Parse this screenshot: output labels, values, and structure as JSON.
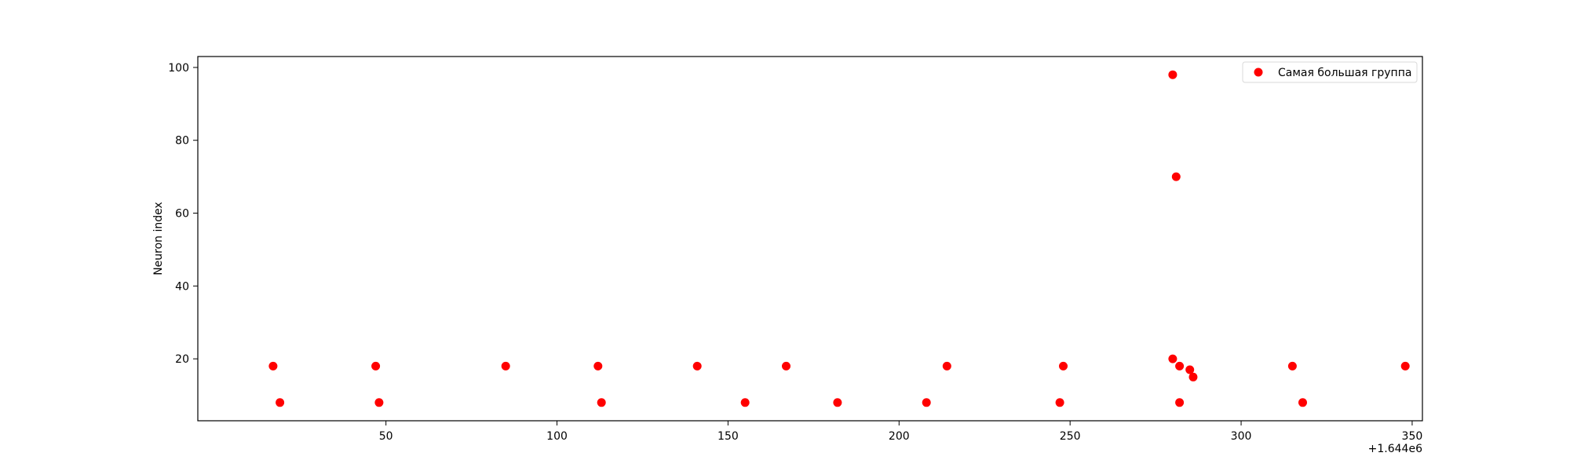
{
  "chart_data": {
    "type": "scatter",
    "title": "",
    "xlabel": "",
    "ylabel": "Neuron index",
    "x_offset_label": "+1.644e6",
    "x_offset": 1644000,
    "xlim": [
      1643995,
      1644353
    ],
    "ylim": [
      3,
      103
    ],
    "xticks": [
      50,
      100,
      150,
      200,
      250,
      300,
      350
    ],
    "yticks": [
      20,
      40,
      60,
      80,
      100
    ],
    "grid": false,
    "legend_position": "top-right",
    "series": [
      {
        "name": "Самая большая группа",
        "color": "#ff0000",
        "points": [
          {
            "x": 1644017,
            "y": 18
          },
          {
            "x": 1644019,
            "y": 8
          },
          {
            "x": 1644047,
            "y": 18
          },
          {
            "x": 1644048,
            "y": 8
          },
          {
            "x": 1644085,
            "y": 18
          },
          {
            "x": 1644112,
            "y": 18
          },
          {
            "x": 1644113,
            "y": 8
          },
          {
            "x": 1644141,
            "y": 18
          },
          {
            "x": 1644155,
            "y": 8
          },
          {
            "x": 1644167,
            "y": 18
          },
          {
            "x": 1644182,
            "y": 8
          },
          {
            "x": 1644208,
            "y": 8
          },
          {
            "x": 1644214,
            "y": 18
          },
          {
            "x": 1644247,
            "y": 8
          },
          {
            "x": 1644248,
            "y": 18
          },
          {
            "x": 1644280,
            "y": 98
          },
          {
            "x": 1644281,
            "y": 70
          },
          {
            "x": 1644280,
            "y": 20
          },
          {
            "x": 1644282,
            "y": 18
          },
          {
            "x": 1644282,
            "y": 8
          },
          {
            "x": 1644285,
            "y": 17
          },
          {
            "x": 1644286,
            "y": 15
          },
          {
            "x": 1644315,
            "y": 18
          },
          {
            "x": 1644318,
            "y": 8
          },
          {
            "x": 1644348,
            "y": 18
          }
        ]
      }
    ]
  }
}
